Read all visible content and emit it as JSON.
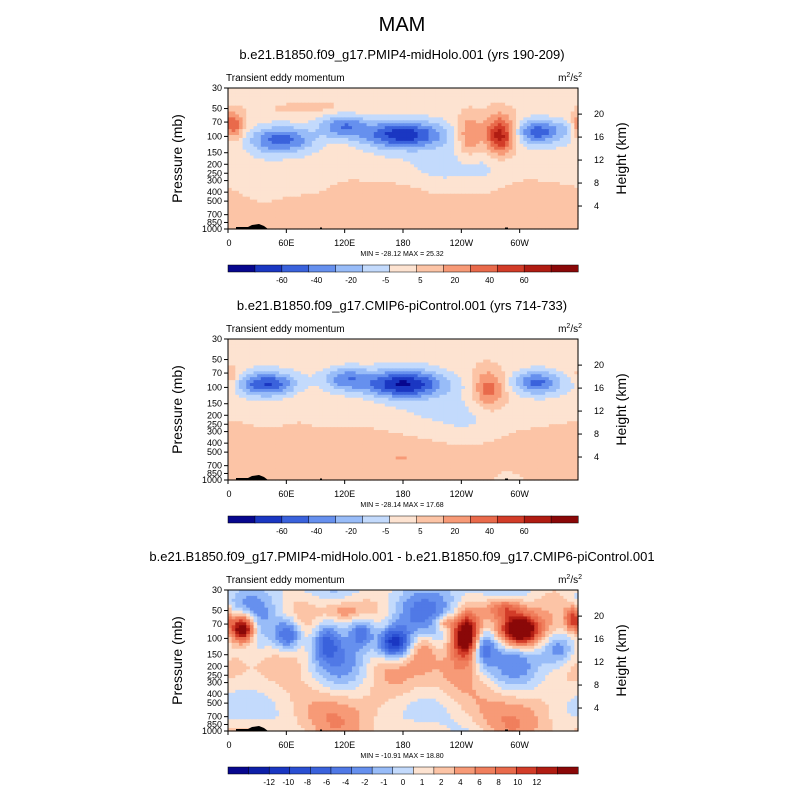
{
  "figure": {
    "title": "MAM"
  },
  "chart_data": [
    {
      "type": "heatmap",
      "title": "b.e21.B1850.f09_g17.PMIP4-midHolo.001 (yrs 190-209)",
      "variable": "Transient eddy momentum",
      "units_main": "m",
      "units_sup1": "2",
      "units_mid": "/s",
      "units_sup2": "2",
      "ylabel": "Pressure (mb)",
      "ylabel_right": "Height (km)",
      "x_ticks": [
        "0",
        "60E",
        "120E",
        "180",
        "120W",
        "60W"
      ],
      "pressure_ticks": [
        "30",
        "50",
        "70",
        "100",
        "150",
        "200",
        "250",
        "300",
        "400",
        "500",
        "700",
        "850",
        "1000"
      ],
      "height_ticks": [
        "20",
        "16",
        "12",
        "8",
        "4"
      ],
      "stats": "MIN = -28.12  MAX = 25.32",
      "min": -28.12,
      "max": 25.32,
      "colorbar_labels": [
        "-60",
        "-40",
        "-20",
        "-5",
        "5",
        "20",
        "40",
        "60"
      ],
      "palette": [
        "#07078e",
        "#1a37c2",
        "#3a62dc",
        "#6690ee",
        "#98bcf8",
        "#c3dafc",
        "#fde3d1",
        "#fcc4a6",
        "#f79a77",
        "#e96a4b",
        "#d23c28",
        "#b01c12",
        "#8a0808"
      ],
      "scale": 30,
      "features": [
        {
          "lon": 5,
          "z": 0.73,
          "v": 18,
          "sx": 8,
          "sz": 0.07
        },
        {
          "lon": 55,
          "z": 0.63,
          "v": -20,
          "sx": 24,
          "sz": 0.07
        },
        {
          "lon": 118,
          "z": 0.73,
          "v": -15,
          "sx": 17,
          "sz": 0.06
        },
        {
          "lon": 180,
          "z": 0.67,
          "v": -24,
          "sx": 30,
          "sz": 0.07
        },
        {
          "lon": 248,
          "z": 0.66,
          "v": 13,
          "sx": 9,
          "sz": 0.1
        },
        {
          "lon": 280,
          "z": 0.66,
          "v": 24,
          "sx": 11,
          "sz": 0.1
        },
        {
          "lon": 318,
          "z": 0.69,
          "v": -19,
          "sx": 16,
          "sz": 0.06
        },
        {
          "lon": 350,
          "z": 0.7,
          "v": -6,
          "sx": 12,
          "sz": 0.06
        },
        {
          "lon": 90,
          "z": 0.86,
          "v": 4,
          "sx": 40,
          "sz": 0.04
        },
        {
          "lon": 240,
          "z": 0.42,
          "v": -6,
          "sx": 60,
          "sz": 0.14
        },
        {
          "lon": 40,
          "z": 0.35,
          "v": -4,
          "sx": 50,
          "sz": 0.1
        },
        {
          "lon": 150,
          "z": 0.2,
          "v": 5,
          "sx": 70,
          "sz": 0.12
        },
        {
          "lon": 320,
          "z": 0.25,
          "v": 5,
          "sx": 40,
          "sz": 0.12
        }
      ],
      "noise": 0.6,
      "seed": 11
    },
    {
      "type": "heatmap",
      "title": "b.e21.B1850.f09_g17.CMIP6-piControl.001 (yrs 714-733)",
      "variable": "Transient eddy momentum",
      "units_main": "m",
      "units_sup1": "2",
      "units_mid": "/s",
      "units_sup2": "2",
      "ylabel": "Pressure (mb)",
      "ylabel_right": "Height (km)",
      "x_ticks": [
        "0",
        "60E",
        "120E",
        "180",
        "120W",
        "60W"
      ],
      "pressure_ticks": [
        "30",
        "50",
        "70",
        "100",
        "150",
        "200",
        "250",
        "300",
        "400",
        "500",
        "700",
        "850",
        "1000"
      ],
      "height_ticks": [
        "20",
        "16",
        "12",
        "8",
        "4"
      ],
      "stats": "MIN = -28.14  MAX = 17.68",
      "min": -28.14,
      "max": 17.68,
      "colorbar_labels": [
        "-60",
        "-40",
        "-20",
        "-5",
        "5",
        "20",
        "40",
        "60"
      ],
      "palette": [
        "#07078e",
        "#1a37c2",
        "#3a62dc",
        "#6690ee",
        "#98bcf8",
        "#c3dafc",
        "#fde3d1",
        "#fcc4a6",
        "#f79a77",
        "#e96a4b",
        "#d23c28",
        "#b01c12",
        "#8a0808"
      ],
      "scale": 30,
      "features": [
        {
          "lon": 4,
          "z": 0.72,
          "v": 8,
          "sx": 6,
          "sz": 0.06
        },
        {
          "lon": 40,
          "z": 0.68,
          "v": -21,
          "sx": 22,
          "sz": 0.06
        },
        {
          "lon": 120,
          "z": 0.72,
          "v": -14,
          "sx": 17,
          "sz": 0.06
        },
        {
          "lon": 180,
          "z": 0.68,
          "v": -26,
          "sx": 30,
          "sz": 0.07
        },
        {
          "lon": 268,
          "z": 0.64,
          "v": 14,
          "sx": 12,
          "sz": 0.1
        },
        {
          "lon": 318,
          "z": 0.69,
          "v": -18,
          "sx": 18,
          "sz": 0.06
        },
        {
          "lon": 240,
          "z": 0.42,
          "v": -5,
          "sx": 60,
          "sz": 0.14
        },
        {
          "lon": 150,
          "z": 0.2,
          "v": 5,
          "sx": 70,
          "sz": 0.12
        },
        {
          "lon": 320,
          "z": 0.25,
          "v": 5,
          "sx": 40,
          "sz": 0.12
        }
      ],
      "noise": 0.6,
      "seed": 23
    },
    {
      "type": "heatmap",
      "title": "b.e21.B1850.f09_g17.PMIP4-midHolo.001 - b.e21.B1850.f09_g17.CMIP6-piControl.001",
      "variable": "Transient eddy momentum",
      "units_main": "m",
      "units_sup1": "2",
      "units_mid": "/s",
      "units_sup2": "2",
      "ylabel": "Pressure (mb)",
      "ylabel_right": "Height (km)",
      "x_ticks": [
        "0",
        "60E",
        "120E",
        "180",
        "120W",
        "60W"
      ],
      "pressure_ticks": [
        "30",
        "50",
        "70",
        "100",
        "150",
        "200",
        "250",
        "300",
        "400",
        "500",
        "700",
        "850",
        "1000"
      ],
      "height_ticks": [
        "20",
        "16",
        "12",
        "8",
        "4"
      ],
      "stats": "MIN = -10.91  MAX = 18.80",
      "min": -10.91,
      "max": 18.8,
      "colorbar_labels": [
        "-12",
        "-10",
        "-8",
        "-6",
        "-4",
        "-2",
        "-1",
        "0",
        "1",
        "2",
        "4",
        "6",
        "8",
        "10",
        "12"
      ],
      "palette": [
        "#07078e",
        "#0d1fa8",
        "#1a37c2",
        "#2a4fd2",
        "#3a62dc",
        "#5079e6",
        "#6690ee",
        "#98bcf8",
        "#c3dafc",
        "#fde3d1",
        "#fcc4a6",
        "#f79a77",
        "#f07f5d",
        "#e96a4b",
        "#d23c28",
        "#b01c12",
        "#8a0808"
      ],
      "scale": 12,
      "features": [
        {
          "lon": 15,
          "z": 0.73,
          "v": 15,
          "sx": 9,
          "sz": 0.07
        },
        {
          "lon": 62,
          "z": 0.68,
          "v": -8,
          "sx": 10,
          "sz": 0.08
        },
        {
          "lon": 100,
          "z": 0.64,
          "v": -5,
          "sx": 10,
          "sz": 0.09
        },
        {
          "lon": 138,
          "z": 0.7,
          "v": -6,
          "sx": 9,
          "sz": 0.08
        },
        {
          "lon": 170,
          "z": 0.62,
          "v": -11,
          "sx": 12,
          "sz": 0.08
        },
        {
          "lon": 200,
          "z": 0.6,
          "v": 4,
          "sx": 10,
          "sz": 0.1
        },
        {
          "lon": 222,
          "z": 0.77,
          "v": 5,
          "sx": 8,
          "sz": 0.04
        },
        {
          "lon": 245,
          "z": 0.68,
          "v": 12,
          "sx": 10,
          "sz": 0.11
        },
        {
          "lon": 262,
          "z": 0.6,
          "v": -7,
          "sx": 9,
          "sz": 0.1
        },
        {
          "lon": 300,
          "z": 0.71,
          "v": 15,
          "sx": 14,
          "sz": 0.08
        },
        {
          "lon": 340,
          "z": 0.58,
          "v": -6,
          "sx": 12,
          "sz": 0.09
        },
        {
          "lon": 355,
          "z": 0.8,
          "v": 8,
          "sx": 6,
          "sz": 0.06
        },
        {
          "lon": 120,
          "z": 0.85,
          "v": 3,
          "sx": 15,
          "sz": 0.05
        },
        {
          "lon": 285,
          "z": 0.87,
          "v": 5,
          "sx": 12,
          "sz": 0.05
        }
      ],
      "noise": 2.4,
      "seed": 37
    }
  ]
}
